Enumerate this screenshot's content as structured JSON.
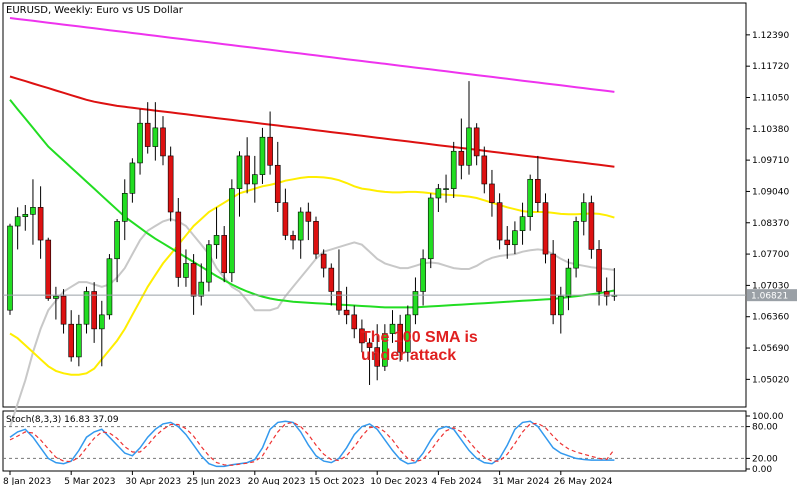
{
  "chart_data": {
    "type": "candlestick",
    "title": "EURUSD, Weekly: Euro vs US Dollar",
    "y_ticks": [
      "1.12390",
      "1.11720",
      "1.11050",
      "1.10380",
      "1.09710",
      "1.09040",
      "1.08370",
      "1.07700",
      "1.07030",
      "1.06360",
      "1.05690",
      "1.05020"
    ],
    "ylim": [
      1.0445,
      1.1305
    ],
    "current_price": 1.06821,
    "current_price_label": "1.06821",
    "x_ticks": [
      "8 Jan 2023",
      "5 Mar 2023",
      "30 Apr 2023",
      "25 Jun 2023",
      "20 Aug 2023",
      "15 Oct 2023",
      "10 Dec 2023",
      "4 Feb 2024",
      "31 Mar 2024",
      "26 May 2024"
    ],
    "candles": [
      [
        1.065,
        1.0835,
        1.064,
        1.083
      ],
      [
        1.083,
        1.087,
        1.078,
        1.085
      ],
      [
        1.085,
        1.0875,
        1.082,
        1.0855
      ],
      [
        1.0855,
        1.093,
        1.079,
        1.087
      ],
      [
        1.087,
        1.0915,
        1.076,
        1.08
      ],
      [
        1.08,
        1.0805,
        1.067,
        1.0675
      ],
      [
        1.0675,
        1.07,
        1.063,
        1.068
      ],
      [
        1.068,
        1.0695,
        1.06,
        1.062
      ],
      [
        1.062,
        1.065,
        1.054,
        1.055
      ],
      [
        1.055,
        1.064,
        1.053,
        1.062
      ],
      [
        1.062,
        1.07,
        1.06,
        1.069
      ],
      [
        1.069,
        1.071,
        1.058,
        1.061
      ],
      [
        1.061,
        1.067,
        1.053,
        1.064
      ],
      [
        1.064,
        1.077,
        1.063,
        1.076
      ],
      [
        1.076,
        1.0845,
        1.071,
        1.084
      ],
      [
        1.084,
        1.093,
        1.08,
        1.09
      ],
      [
        1.09,
        1.0975,
        1.088,
        1.0965
      ],
      [
        1.0965,
        1.108,
        1.094,
        1.105
      ],
      [
        1.105,
        1.1095,
        1.0985,
        1.1
      ],
      [
        1.1,
        1.1095,
        1.097,
        1.104
      ],
      [
        1.104,
        1.1065,
        1.096,
        1.098
      ],
      [
        1.098,
        1.1,
        1.084,
        1.086
      ],
      [
        1.086,
        1.089,
        1.07,
        1.072
      ],
      [
        1.072,
        1.078,
        1.07,
        1.075
      ],
      [
        1.075,
        1.077,
        1.064,
        1.068
      ],
      [
        1.068,
        1.075,
        1.066,
        1.071
      ],
      [
        1.071,
        1.08,
        1.069,
        1.079
      ],
      [
        1.079,
        1.087,
        1.076,
        1.081
      ],
      [
        1.081,
        1.083,
        1.071,
        1.073
      ],
      [
        1.073,
        1.093,
        1.071,
        1.091
      ],
      [
        1.091,
        1.099,
        1.085,
        1.098
      ],
      [
        1.098,
        1.102,
        1.09,
        1.092
      ],
      [
        1.092,
        1.098,
        1.088,
        1.094
      ],
      [
        1.094,
        1.104,
        1.092,
        1.102
      ],
      [
        1.102,
        1.1075,
        1.094,
        1.096
      ],
      [
        1.096,
        1.101,
        1.086,
        1.088
      ],
      [
        1.088,
        1.091,
        1.08,
        1.081
      ],
      [
        1.081,
        1.082,
        1.078,
        1.08
      ],
      [
        1.08,
        1.087,
        1.076,
        1.086
      ],
      [
        1.086,
        1.088,
        1.08,
        1.084
      ],
      [
        1.084,
        1.085,
        1.076,
        1.077
      ],
      [
        1.077,
        1.078,
        1.072,
        1.074
      ],
      [
        1.074,
        1.075,
        1.066,
        1.069
      ],
      [
        1.069,
        1.078,
        1.064,
        1.065
      ],
      [
        1.065,
        1.07,
        1.062,
        1.064
      ],
      [
        1.064,
        1.066,
        1.059,
        1.061
      ],
      [
        1.061,
        1.063,
        1.056,
        1.058
      ],
      [
        1.058,
        1.059,
        1.049,
        1.057
      ],
      [
        1.057,
        1.062,
        1.05,
        1.053
      ],
      [
        1.053,
        1.062,
        1.052,
        1.06
      ],
      [
        1.06,
        1.065,
        1.058,
        1.062
      ],
      [
        1.062,
        1.064,
        1.054,
        1.056
      ],
      [
        1.056,
        1.066,
        1.054,
        1.064
      ],
      [
        1.064,
        1.072,
        1.062,
        1.069
      ],
      [
        1.069,
        1.078,
        1.066,
        1.076
      ],
      [
        1.076,
        1.09,
        1.074,
        1.089
      ],
      [
        1.089,
        1.092,
        1.086,
        1.091
      ],
      [
        1.091,
        1.094,
        1.088,
        1.091
      ],
      [
        1.091,
        1.101,
        1.089,
        1.099
      ],
      [
        1.099,
        1.106,
        1.093,
        1.096
      ],
      [
        1.096,
        1.114,
        1.094,
        1.104
      ],
      [
        1.104,
        1.105,
        1.096,
        1.098
      ],
      [
        1.098,
        1.1,
        1.09,
        1.092
      ],
      [
        1.092,
        1.095,
        1.085,
        1.088
      ],
      [
        1.088,
        1.09,
        1.078,
        1.08
      ],
      [
        1.08,
        1.083,
        1.076,
        1.079
      ],
      [
        1.079,
        1.084,
        1.077,
        1.082
      ],
      [
        1.082,
        1.088,
        1.079,
        1.085
      ],
      [
        1.085,
        1.094,
        1.082,
        1.093
      ],
      [
        1.093,
        1.098,
        1.086,
        1.088
      ],
      [
        1.088,
        1.09,
        1.075,
        1.077
      ],
      [
        1.077,
        1.08,
        1.062,
        1.064
      ],
      [
        1.064,
        1.07,
        1.06,
        1.068
      ],
      [
        1.068,
        1.076,
        1.065,
        1.074
      ],
      [
        1.074,
        1.085,
        1.072,
        1.084
      ],
      [
        1.084,
        1.09,
        1.081,
        1.088
      ],
      [
        1.088,
        1.0895,
        1.076,
        1.078
      ],
      [
        1.078,
        1.08,
        1.066,
        1.069
      ],
      [
        1.069,
        1.072,
        1.066,
        1.068
      ],
      [
        1.068,
        1.074,
        1.067,
        1.0682
      ]
    ],
    "sma_fast_color": "#c8c8c8",
    "sma_50_color": "#ffee00",
    "sma_100_color": "#22dd22",
    "sma_200_color": "#dd1111",
    "sma_500_color": "#ee33ee",
    "sma_fast": [
      1.04,
      1.045,
      1.05,
      1.056,
      1.061,
      1.065,
      1.067,
      1.069,
      1.07,
      1.071,
      1.071,
      1.0705,
      1.07,
      1.0705,
      1.072,
      1.074,
      1.077,
      1.08,
      1.082,
      1.083,
      1.084,
      1.0845,
      1.084,
      1.083,
      1.081,
      1.079,
      1.077,
      1.074,
      1.072,
      1.07,
      1.069,
      1.067,
      1.065,
      1.065,
      1.065,
      1.0655,
      1.068,
      1.07,
      1.072,
      1.074,
      1.076,
      1.0775,
      1.078,
      1.0785,
      1.079,
      1.0795,
      1.079,
      1.0775,
      1.076,
      1.075,
      1.0745,
      1.074,
      1.074,
      1.0745,
      1.075,
      1.0752,
      1.075,
      1.0745,
      1.074,
      1.0738,
      1.0738,
      1.0745,
      1.0755,
      1.0762,
      1.0766,
      1.0768,
      1.077,
      1.0775,
      1.0778,
      1.078,
      1.0778,
      1.077,
      1.076,
      1.0752,
      1.0748,
      1.0745,
      1.0742,
      1.074,
      1.0738,
      1.0736
    ],
    "sma_50": [
      1.06,
      1.059,
      1.0575,
      1.056,
      1.0545,
      1.053,
      1.052,
      1.0515,
      1.0512,
      1.0512,
      1.0515,
      1.0525,
      1.0545,
      1.0565,
      1.0585,
      1.061,
      1.064,
      1.067,
      1.07,
      1.0725,
      1.075,
      1.077,
      1.079,
      1.081,
      1.083,
      1.0845,
      1.086,
      1.087,
      1.088,
      1.089,
      1.09,
      1.0905,
      1.091,
      1.0915,
      1.0918,
      1.0922,
      1.0927,
      1.093,
      1.0933,
      1.0935,
      1.0935,
      1.0934,
      1.0932,
      1.0928,
      1.0922,
      1.0915,
      1.091,
      1.0908,
      1.0905,
      1.0903,
      1.0902,
      1.0902,
      1.0903,
      1.0903,
      1.0902,
      1.09,
      1.0898,
      1.0897,
      1.0896,
      1.0895,
      1.0893,
      1.089,
      1.0885,
      1.088,
      1.0875,
      1.087,
      1.0866,
      1.0862,
      1.086,
      1.086,
      1.086,
      1.0858,
      1.0856,
      1.0855,
      1.0855,
      1.0856,
      1.0857,
      1.0856,
      1.0853,
      1.0848
    ],
    "sma_100": [
      1.11,
      1.108,
      1.106,
      1.104,
      1.102,
      1.1,
      1.0985,
      1.097,
      1.0955,
      1.094,
      1.0925,
      1.091,
      1.0895,
      1.088,
      1.0865,
      1.085,
      1.0838,
      1.0826,
      1.0814,
      1.0803,
      1.0793,
      1.0783,
      1.0773,
      1.0763,
      1.0753,
      1.0743,
      1.0733,
      1.0723,
      1.0714,
      1.0705,
      1.0697,
      1.069,
      1.0684,
      1.0679,
      1.0675,
      1.0672,
      1.067,
      1.0668,
      1.0667,
      1.0666,
      1.0665,
      1.0664,
      1.0663,
      1.0662,
      1.0661,
      1.066,
      1.0659,
      1.0658,
      1.0657,
      1.0656,
      1.0656,
      1.0656,
      1.0656,
      1.0656,
      1.0657,
      1.0658,
      1.0659,
      1.066,
      1.0661,
      1.0662,
      1.0663,
      1.0664,
      1.0665,
      1.0666,
      1.0667,
      1.0668,
      1.0669,
      1.067,
      1.0671,
      1.0672,
      1.0673,
      1.0674,
      1.0676,
      1.0678,
      1.068,
      1.0682,
      1.0684,
      1.0686,
      1.0689,
      1.0692
    ],
    "sma_200": [
      1.115,
      1.1145,
      1.114,
      1.1135,
      1.113,
      1.1125,
      1.112,
      1.1115,
      1.111,
      1.1105,
      1.11,
      1.1096,
      1.1093,
      1.109,
      1.1087,
      1.1085,
      1.1083,
      1.1081,
      1.1079,
      1.1077,
      1.1075,
      1.1073,
      1.1071,
      1.1069,
      1.1067,
      1.1065,
      1.1063,
      1.1061,
      1.1059,
      1.1057,
      1.1055,
      1.1053,
      1.1051,
      1.1049,
      1.1047,
      1.1045,
      1.1043,
      1.1041,
      1.1039,
      1.1037,
      1.1035,
      1.1033,
      1.1031,
      1.1029,
      1.1027,
      1.1025,
      1.1023,
      1.1021,
      1.1019,
      1.1017,
      1.1015,
      1.1013,
      1.1011,
      1.1009,
      1.1007,
      1.1005,
      1.1003,
      1.1001,
      1.0999,
      1.0997,
      1.0995,
      1.0993,
      1.0991,
      1.0989,
      1.0987,
      1.0985,
      1.0983,
      1.0981,
      1.0979,
      1.0977,
      1.0975,
      1.0973,
      1.0971,
      1.0969,
      1.0967,
      1.0965,
      1.0963,
      1.0961,
      1.0959,
      1.0957
    ],
    "sma_500": [
      1.1275,
      1.1273,
      1.1271,
      1.1269,
      1.1267,
      1.1265,
      1.1263,
      1.1261,
      1.1259,
      1.1257,
      1.1255,
      1.1253,
      1.1251,
      1.1249,
      1.1247,
      1.1245,
      1.1243,
      1.1241,
      1.1239,
      1.1237,
      1.1235,
      1.1233,
      1.1231,
      1.1229,
      1.1227,
      1.1225,
      1.1223,
      1.1221,
      1.1219,
      1.1217,
      1.1215,
      1.1213,
      1.1211,
      1.1209,
      1.1207,
      1.1205,
      1.1203,
      1.1201,
      1.1199,
      1.1197,
      1.1195,
      1.1193,
      1.1191,
      1.1189,
      1.1187,
      1.1185,
      1.1183,
      1.1181,
      1.1179,
      1.1177,
      1.1175,
      1.1173,
      1.1171,
      1.1169,
      1.1167,
      1.1165,
      1.1163,
      1.1161,
      1.1159,
      1.1157,
      1.1155,
      1.1153,
      1.1151,
      1.1149,
      1.1147,
      1.1145,
      1.1143,
      1.1141,
      1.1139,
      1.1137,
      1.1135,
      1.1133,
      1.1131,
      1.1129,
      1.1127,
      1.1125,
      1.1123,
      1.1121,
      1.1119,
      1.1117
    ],
    "annotation": [
      "The 100 SMA is",
      "under attack"
    ],
    "stochastic": {
      "label": "Stoch(8,3,3) 16.83 37.09",
      "y_ticks": [
        "100.00",
        "80.00",
        "20.00",
        "0.00"
      ],
      "ylim": [
        0,
        100
      ],
      "levels": [
        80,
        20
      ],
      "k_color": "#3399ee",
      "d_color": "#ee3333",
      "k": [
        60,
        70,
        75,
        60,
        40,
        20,
        12,
        10,
        15,
        35,
        60,
        70,
        75,
        60,
        45,
        30,
        25,
        40,
        60,
        75,
        85,
        88,
        80,
        65,
        45,
        25,
        10,
        5,
        5,
        8,
        10,
        12,
        18,
        40,
        75,
        88,
        90,
        88,
        70,
        45,
        25,
        15,
        12,
        20,
        40,
        65,
        80,
        85,
        75,
        55,
        35,
        18,
        10,
        12,
        30,
        55,
        75,
        80,
        75,
        55,
        35,
        20,
        12,
        10,
        20,
        45,
        75,
        88,
        90,
        80,
        60,
        40,
        30,
        25,
        20,
        18,
        16.8,
        16.8,
        16.8,
        16.83
      ],
      "d": [
        55,
        62,
        70,
        68,
        55,
        38,
        22,
        15,
        14,
        22,
        40,
        58,
        70,
        68,
        58,
        42,
        32,
        32,
        45,
        62,
        75,
        84,
        84,
        76,
        62,
        42,
        25,
        12,
        8,
        7,
        9,
        11,
        14,
        25,
        48,
        70,
        85,
        88,
        80,
        65,
        45,
        28,
        18,
        16,
        25,
        42,
        62,
        78,
        80,
        70,
        55,
        35,
        20,
        14,
        18,
        35,
        55,
        72,
        78,
        70,
        52,
        35,
        22,
        15,
        15,
        28,
        48,
        70,
        85,
        86,
        78,
        62,
        48,
        38,
        32,
        28,
        24,
        20,
        18,
        37.09
      ]
    }
  }
}
